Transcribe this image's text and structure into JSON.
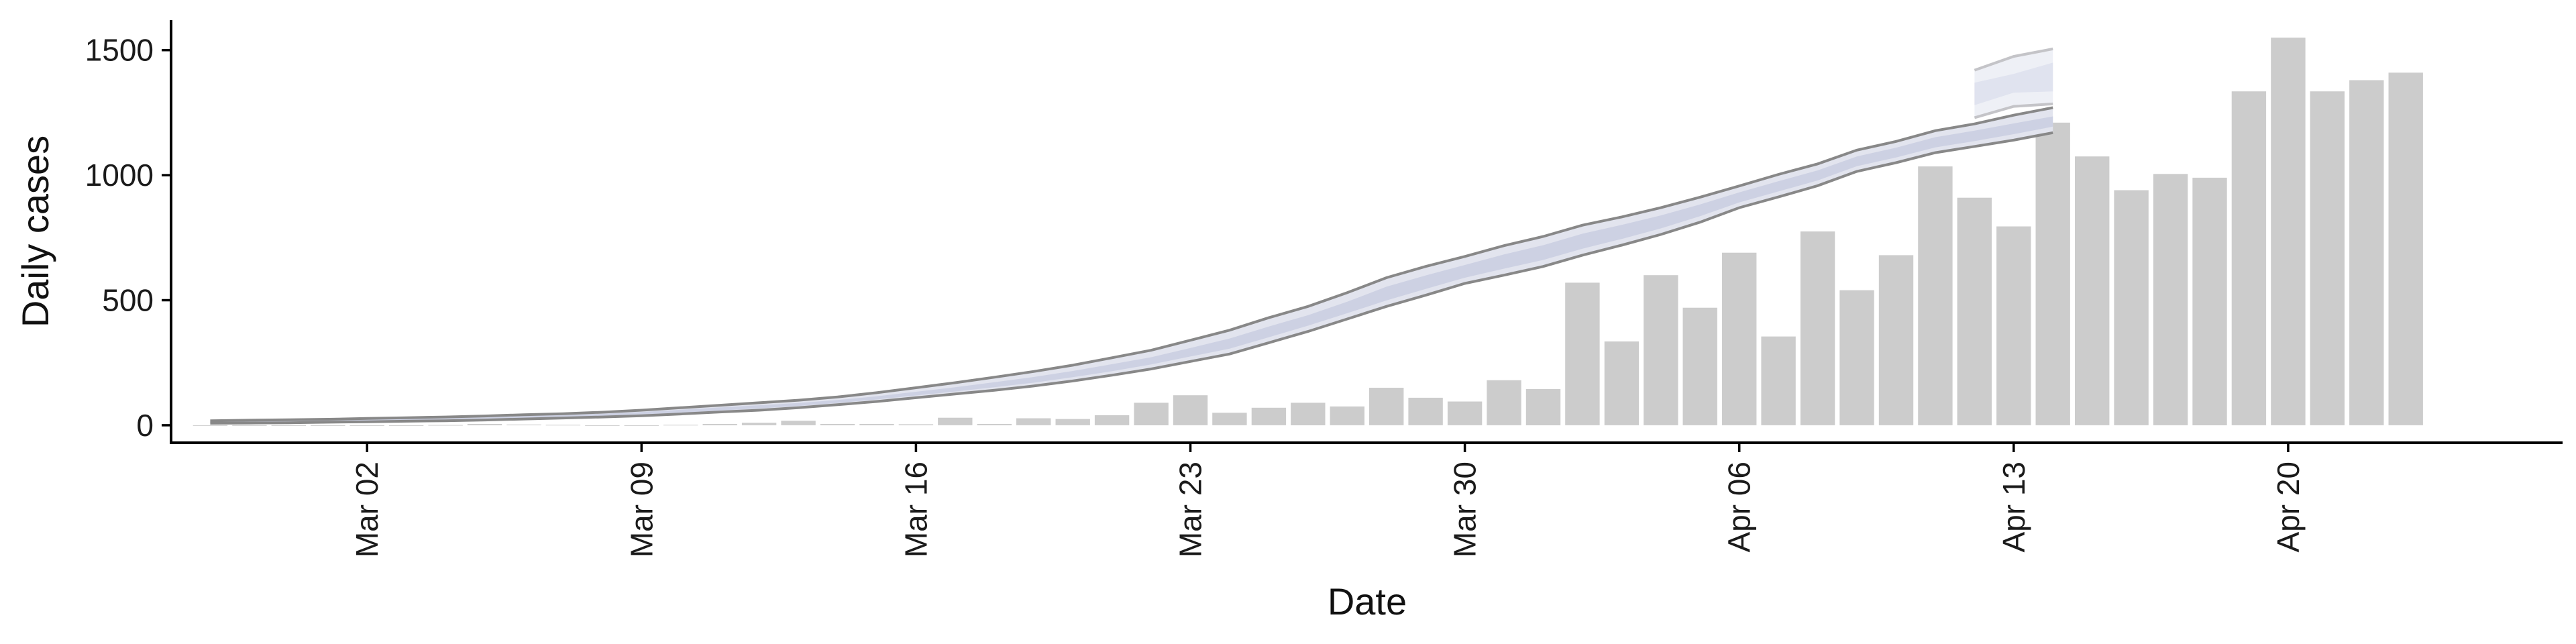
{
  "chart_data": {
    "type": "bar",
    "xlabel": "Date",
    "ylabel": "Daily cases",
    "xlim": [
      "2020-02-26",
      "2020-04-27"
    ],
    "ylim": [
      -70,
      1620
    ],
    "x_ticks": [
      {
        "date": "2020-03-02",
        "label": "Mar 02"
      },
      {
        "date": "2020-03-09",
        "label": "Mar 09"
      },
      {
        "date": "2020-03-16",
        "label": "Mar 16"
      },
      {
        "date": "2020-03-23",
        "label": "Mar 23"
      },
      {
        "date": "2020-03-30",
        "label": "Mar 30"
      },
      {
        "date": "2020-04-06",
        "label": "Apr 06"
      },
      {
        "date": "2020-04-13",
        "label": "Apr 13"
      },
      {
        "date": "2020-04-20",
        "label": "Apr 20"
      }
    ],
    "y_ticks": [
      0,
      500,
      1000,
      1500
    ],
    "grid": false,
    "colors": {
      "bars": "#cccccc",
      "band_outer": "#e2e4ee",
      "band_inner": "#cdd1e3",
      "bound_lines": "#888888"
    },
    "bars": {
      "dates": [
        "2020-02-27",
        "2020-02-28",
        "2020-02-29",
        "2020-03-01",
        "2020-03-02",
        "2020-03-03",
        "2020-03-04",
        "2020-03-05",
        "2020-03-06",
        "2020-03-07",
        "2020-03-08",
        "2020-03-09",
        "2020-03-10",
        "2020-03-11",
        "2020-03-12",
        "2020-03-13",
        "2020-03-14",
        "2020-03-15",
        "2020-03-16",
        "2020-03-17",
        "2020-03-18",
        "2020-03-19",
        "2020-03-20",
        "2020-03-21",
        "2020-03-22",
        "2020-03-23",
        "2020-03-24",
        "2020-03-25",
        "2020-03-26",
        "2020-03-27",
        "2020-03-28",
        "2020-03-29",
        "2020-03-30",
        "2020-03-31",
        "2020-04-01",
        "2020-04-02",
        "2020-04-03",
        "2020-04-04",
        "2020-04-05",
        "2020-04-06",
        "2020-04-07",
        "2020-04-08",
        "2020-04-09",
        "2020-04-10",
        "2020-04-11",
        "2020-04-12",
        "2020-04-13",
        "2020-04-14",
        "2020-04-15",
        "2020-04-16",
        "2020-04-17",
        "2020-04-18",
        "2020-04-19",
        "2020-04-20",
        "2020-04-21",
        "2020-04-22",
        "2020-04-23"
      ],
      "values": [
        0,
        0,
        0,
        0,
        0,
        0,
        1,
        5,
        3,
        2,
        0,
        0,
        2,
        5,
        10,
        18,
        5,
        5,
        4,
        30,
        5,
        28,
        25,
        40,
        90,
        120,
        50,
        70,
        90,
        75,
        150,
        110,
        95,
        180,
        145,
        570,
        335,
        600,
        470,
        690,
        355,
        775,
        540,
        680,
        1035,
        910,
        795,
        1210,
        1075,
        940,
        1005,
        990,
        1335,
        1550,
        1335,
        1380,
        1410
      ]
    },
    "band": {
      "dates": [
        "2020-02-27",
        "2020-02-28",
        "2020-02-29",
        "2020-03-01",
        "2020-03-02",
        "2020-03-03",
        "2020-03-04",
        "2020-03-05",
        "2020-03-06",
        "2020-03-07",
        "2020-03-08",
        "2020-03-09",
        "2020-03-10",
        "2020-03-11",
        "2020-03-12",
        "2020-03-13",
        "2020-03-14",
        "2020-03-15",
        "2020-03-16",
        "2020-03-17",
        "2020-03-18",
        "2020-03-19",
        "2020-03-20",
        "2020-03-21",
        "2020-03-22",
        "2020-03-23",
        "2020-03-24",
        "2020-03-25",
        "2020-03-26",
        "2020-03-27",
        "2020-03-28",
        "2020-03-29",
        "2020-03-30",
        "2020-03-31",
        "2020-04-01",
        "2020-04-02",
        "2020-04-03",
        "2020-04-04",
        "2020-04-05",
        "2020-04-06",
        "2020-04-07",
        "2020-04-08",
        "2020-04-09",
        "2020-04-10",
        "2020-04-11",
        "2020-04-12",
        "2020-04-13",
        "2020-04-14"
      ],
      "upper": [
        18,
        20,
        22,
        24,
        27,
        30,
        33,
        37,
        42,
        46,
        52,
        60,
        70,
        80,
        90,
        100,
        113,
        130,
        150,
        170,
        192,
        215,
        240,
        270,
        300,
        340,
        380,
        430,
        475,
        530,
        590,
        635,
        675,
        718,
        755,
        800,
        833,
        870,
        912,
        957,
        1003,
        1045,
        1100,
        1135,
        1178,
        1205,
        1240,
        1270
      ],
      "lower": [
        8,
        9,
        10,
        12,
        14,
        16,
        18,
        21,
        25,
        29,
        33,
        38,
        45,
        53,
        60,
        70,
        82,
        95,
        110,
        125,
        140,
        157,
        177,
        200,
        225,
        255,
        285,
        330,
        375,
        425,
        475,
        520,
        567,
        600,
        635,
        680,
        720,
        763,
        812,
        870,
        913,
        958,
        1015,
        1050,
        1090,
        1115,
        1140,
        1170
      ],
      "inner_upper": [
        15,
        17,
        19,
        21,
        23,
        26,
        29,
        33,
        37,
        41,
        46,
        53,
        62,
        71,
        80,
        89,
        101,
        116,
        134,
        152,
        172,
        193,
        217,
        244,
        272,
        309,
        347,
        395,
        440,
        494,
        554,
        599,
        641,
        683,
        720,
        766,
        801,
        839,
        883,
        931,
        976,
        1019,
        1075,
        1110,
        1152,
        1178,
        1207,
        1235
      ],
      "inner_lower": [
        11,
        12,
        13,
        15,
        17,
        19,
        21,
        24,
        28,
        32,
        37,
        43,
        50,
        59,
        67,
        77,
        89,
        103,
        119,
        135,
        152,
        170,
        192,
        216,
        243,
        275,
        306,
        352,
        398,
        448,
        499,
        545,
        590,
        626,
        661,
        706,
        745,
        787,
        836,
        891,
        935,
        979,
        1036,
        1071,
        1111,
        1136,
        1164,
        1194
      ]
    },
    "band_extension": {
      "dates": [
        "2020-04-12",
        "2020-04-13",
        "2020-04-14"
      ],
      "upper": [
        1420,
        1475,
        1505
      ],
      "lower": [
        1230,
        1275,
        1285
      ],
      "inner_upper": [
        1370,
        1405,
        1450
      ],
      "inner_lower": [
        1280,
        1330,
        1335
      ]
    }
  }
}
